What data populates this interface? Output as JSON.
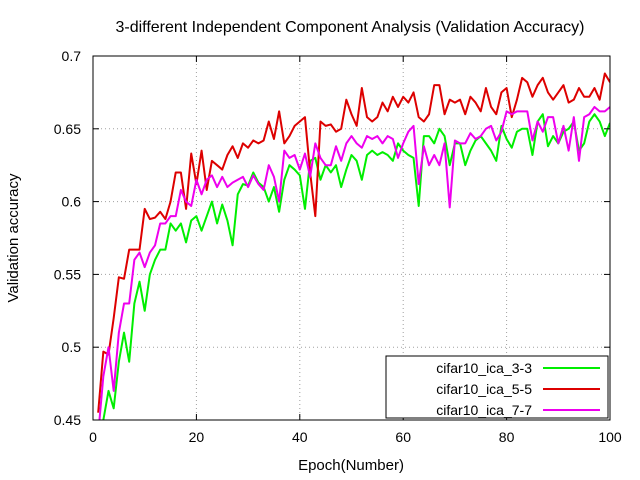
{
  "chart_data": {
    "type": "line",
    "title": "3-different Independent Component Analysis (Validation Accuracy)",
    "xlabel": "Epoch(Number)",
    "ylabel": "Validation accuracy",
    "xlim": [
      0,
      100
    ],
    "ylim": [
      0.45,
      0.7
    ],
    "x_ticks": [
      0,
      20,
      40,
      60,
      80,
      100
    ],
    "y_ticks": [
      0.45,
      0.5,
      0.55,
      0.6,
      0.65,
      0.7
    ],
    "x_tick_labels": [
      "0",
      "20",
      "40",
      "60",
      "80",
      "100"
    ],
    "y_tick_labels": [
      "0.45",
      "0.5",
      "0.55",
      "0.6",
      "0.65",
      "0.7"
    ],
    "grid": true,
    "legend_position": "bottom-right",
    "series": [
      {
        "name": "cifar10_ica_3-3",
        "color": "#00ee00",
        "x": [
          1,
          2,
          3,
          4,
          5,
          6,
          7,
          8,
          9,
          10,
          11,
          12,
          13,
          14,
          15,
          16,
          17,
          18,
          19,
          20,
          21,
          22,
          23,
          24,
          25,
          26,
          27,
          28,
          29,
          30,
          31,
          32,
          33,
          34,
          35,
          36,
          37,
          38,
          39,
          40,
          41,
          42,
          43,
          44,
          45,
          46,
          47,
          48,
          49,
          50,
          51,
          52,
          53,
          54,
          55,
          56,
          57,
          58,
          59,
          60,
          61,
          62,
          63,
          64,
          65,
          66,
          67,
          68,
          69,
          70,
          71,
          72,
          73,
          74,
          75,
          76,
          77,
          78,
          79,
          80,
          81,
          82,
          83,
          84,
          85,
          86,
          87,
          88,
          89,
          90,
          91,
          92,
          93,
          94,
          95,
          96,
          97,
          98,
          99,
          100
        ],
        "values": [
          0.44,
          0.45,
          0.47,
          0.458,
          0.49,
          0.51,
          0.49,
          0.53,
          0.545,
          0.525,
          0.55,
          0.56,
          0.567,
          0.567,
          0.585,
          0.58,
          0.585,
          0.572,
          0.587,
          0.59,
          0.58,
          0.59,
          0.6,
          0.585,
          0.598,
          0.587,
          0.57,
          0.605,
          0.612,
          0.611,
          0.62,
          0.613,
          0.61,
          0.6,
          0.61,
          0.593,
          0.615,
          0.625,
          0.622,
          0.618,
          0.595,
          0.628,
          0.63,
          0.615,
          0.625,
          0.62,
          0.625,
          0.61,
          0.622,
          0.632,
          0.628,
          0.615,
          0.632,
          0.635,
          0.632,
          0.634,
          0.632,
          0.628,
          0.64,
          0.635,
          0.632,
          0.63,
          0.597,
          0.645,
          0.645,
          0.64,
          0.65,
          0.645,
          0.625,
          0.64,
          0.64,
          0.625,
          0.635,
          0.642,
          0.645,
          0.64,
          0.635,
          0.628,
          0.652,
          0.643,
          0.637,
          0.648,
          0.65,
          0.65,
          0.632,
          0.655,
          0.66,
          0.638,
          0.645,
          0.64,
          0.648,
          0.65,
          0.655,
          0.635,
          0.64,
          0.655,
          0.66,
          0.655,
          0.645,
          0.654
        ]
      },
      {
        "name": "cifar10_ica_5-5",
        "color": "#dd0000",
        "x": [
          1,
          2,
          3,
          4,
          5,
          6,
          7,
          8,
          9,
          10,
          11,
          12,
          13,
          14,
          15,
          16,
          17,
          18,
          19,
          20,
          21,
          22,
          23,
          24,
          25,
          26,
          27,
          28,
          29,
          30,
          31,
          32,
          33,
          34,
          35,
          36,
          37,
          38,
          39,
          40,
          41,
          42,
          43,
          44,
          45,
          46,
          47,
          48,
          49,
          50,
          51,
          52,
          53,
          54,
          55,
          56,
          57,
          58,
          59,
          60,
          61,
          62,
          63,
          64,
          65,
          66,
          67,
          68,
          69,
          70,
          71,
          72,
          73,
          74,
          75,
          76,
          77,
          78,
          79,
          80,
          81,
          82,
          83,
          84,
          85,
          86,
          87,
          88,
          89,
          90,
          91,
          92,
          93,
          94,
          95,
          96,
          97,
          98,
          99,
          100
        ],
        "values": [
          0.455,
          0.497,
          0.495,
          0.52,
          0.548,
          0.547,
          0.567,
          0.567,
          0.567,
          0.595,
          0.588,
          0.589,
          0.593,
          0.588,
          0.6,
          0.62,
          0.62,
          0.595,
          0.633,
          0.612,
          0.635,
          0.608,
          0.628,
          0.625,
          0.622,
          0.632,
          0.638,
          0.63,
          0.64,
          0.637,
          0.642,
          0.64,
          0.642,
          0.655,
          0.643,
          0.662,
          0.64,
          0.645,
          0.652,
          0.655,
          0.658,
          0.62,
          0.59,
          0.655,
          0.652,
          0.653,
          0.648,
          0.65,
          0.67,
          0.66,
          0.652,
          0.678,
          0.658,
          0.655,
          0.658,
          0.668,
          0.662,
          0.672,
          0.665,
          0.672,
          0.668,
          0.675,
          0.658,
          0.655,
          0.66,
          0.68,
          0.68,
          0.66,
          0.67,
          0.668,
          0.67,
          0.66,
          0.672,
          0.668,
          0.662,
          0.678,
          0.665,
          0.66,
          0.675,
          0.678,
          0.658,
          0.67,
          0.685,
          0.682,
          0.672,
          0.68,
          0.685,
          0.675,
          0.67,
          0.675,
          0.68,
          0.668,
          0.67,
          0.678,
          0.672,
          0.672,
          0.678,
          0.67,
          0.688,
          0.682
        ]
      },
      {
        "name": "cifar10_ica_7-7",
        "color": "#ee00ee",
        "x": [
          1,
          2,
          3,
          4,
          5,
          6,
          7,
          8,
          9,
          10,
          11,
          12,
          13,
          14,
          15,
          16,
          17,
          18,
          19,
          20,
          21,
          22,
          23,
          24,
          25,
          26,
          27,
          28,
          29,
          30,
          31,
          32,
          33,
          34,
          35,
          36,
          37,
          38,
          39,
          40,
          41,
          42,
          43,
          44,
          45,
          46,
          47,
          48,
          49,
          50,
          51,
          52,
          53,
          54,
          55,
          56,
          57,
          58,
          59,
          60,
          61,
          62,
          63,
          64,
          65,
          66,
          67,
          68,
          69,
          70,
          71,
          72,
          73,
          74,
          75,
          76,
          77,
          78,
          79,
          80,
          81,
          82,
          83,
          84,
          85,
          86,
          87,
          88,
          89,
          90,
          91,
          92,
          93,
          94,
          95,
          96,
          97,
          98,
          99,
          100
        ],
        "values": [
          0.44,
          0.48,
          0.5,
          0.47,
          0.51,
          0.53,
          0.53,
          0.56,
          0.565,
          0.555,
          0.565,
          0.57,
          0.585,
          0.585,
          0.59,
          0.59,
          0.608,
          0.6,
          0.597,
          0.615,
          0.605,
          0.615,
          0.618,
          0.61,
          0.617,
          0.61,
          0.613,
          0.615,
          0.617,
          0.61,
          0.618,
          0.612,
          0.608,
          0.625,
          0.617,
          0.6,
          0.635,
          0.63,
          0.632,
          0.622,
          0.633,
          0.617,
          0.64,
          0.63,
          0.625,
          0.625,
          0.638,
          0.628,
          0.64,
          0.645,
          0.64,
          0.637,
          0.645,
          0.643,
          0.645,
          0.64,
          0.645,
          0.643,
          0.63,
          0.64,
          0.648,
          0.652,
          0.612,
          0.638,
          0.625,
          0.632,
          0.625,
          0.64,
          0.596,
          0.642,
          0.64,
          0.64,
          0.647,
          0.643,
          0.645,
          0.65,
          0.652,
          0.642,
          0.648,
          0.662,
          0.66,
          0.662,
          0.662,
          0.662,
          0.642,
          0.655,
          0.648,
          0.658,
          0.658,
          0.64,
          0.652,
          0.635,
          0.658,
          0.628,
          0.658,
          0.66,
          0.665,
          0.662,
          0.662,
          0.665
        ]
      }
    ]
  }
}
